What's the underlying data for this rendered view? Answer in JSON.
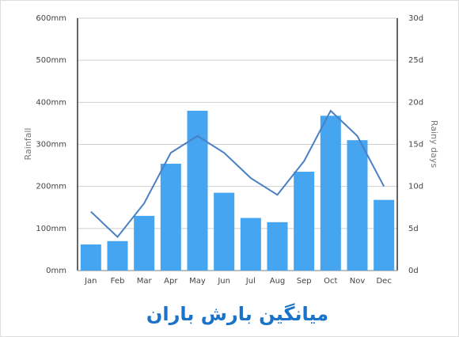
{
  "chart_data": {
    "type": "bar-line",
    "title": "میانگین بارش باران",
    "ylabel": "Rainfall",
    "y2label": "Rainy days",
    "categories": [
      "Jan",
      "Feb",
      "Mar",
      "Apr",
      "May",
      "Jun",
      "Jul",
      "Aug",
      "Sep",
      "Oct",
      "Nov",
      "Dec"
    ],
    "series": [
      {
        "type": "bar",
        "color": "#45a5f0",
        "values": [
          62,
          70,
          130,
          254,
          380,
          185,
          125,
          115,
          235,
          368,
          310,
          168
        ]
      },
      {
        "type": "line",
        "axis": "y2",
        "color": "#4a80c4",
        "values": [
          7,
          4,
          8,
          14,
          16,
          14,
          11,
          9,
          13,
          19,
          16,
          10
        ]
      }
    ],
    "ylim": [
      0,
      600
    ],
    "yticks": [
      {
        "value": 0,
        "label": "0mm"
      },
      {
        "value": 100,
        "label": "100mm"
      },
      {
        "value": 200,
        "label": "200mm"
      },
      {
        "value": 300,
        "label": "300mm"
      },
      {
        "value": 400,
        "label": "400mm"
      },
      {
        "value": 500,
        "label": "500mm"
      },
      {
        "value": 600,
        "label": "600mm"
      }
    ],
    "y2lim": [
      0,
      30
    ],
    "y2ticks": [
      {
        "value": 0,
        "label": "0d"
      },
      {
        "value": 5,
        "label": "5d"
      },
      {
        "value": 10,
        "label": "10d"
      },
      {
        "value": 15,
        "label": "15d"
      },
      {
        "value": 20,
        "label": "20d"
      },
      {
        "value": 25,
        "label": "25d"
      },
      {
        "value": 30,
        "label": "30d"
      }
    ],
    "grid": true
  }
}
